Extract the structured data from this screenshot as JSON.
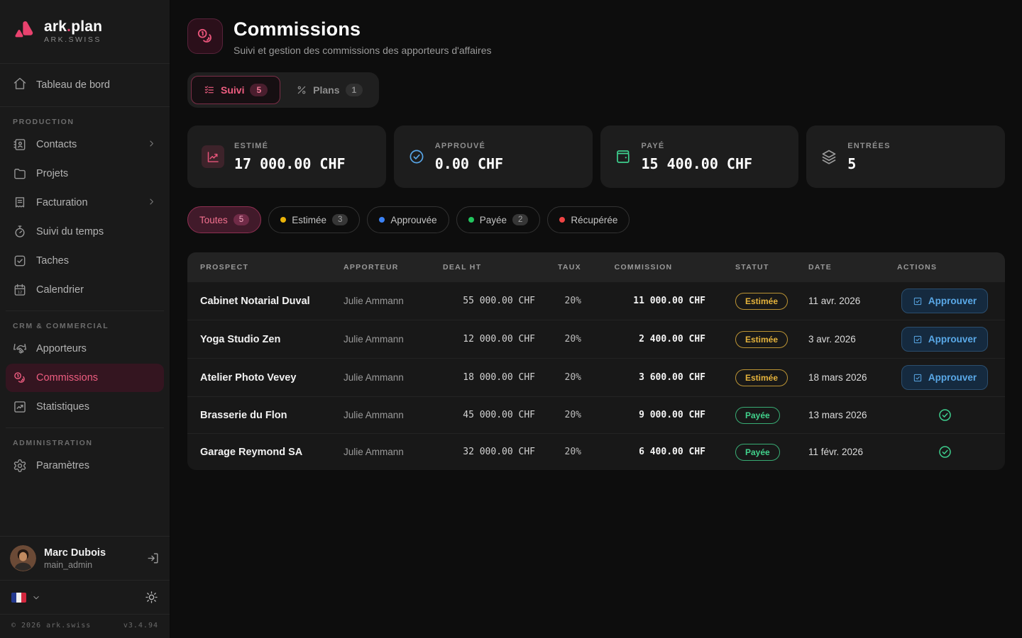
{
  "brand": {
    "name_a": "ark",
    "name_dot": ".",
    "name_b": "plan",
    "org": "ARK.SWISS"
  },
  "colors": {
    "accent_pink": "#e8426e",
    "yellow": "#eab308",
    "green": "#22c55e",
    "blue": "#3b82f6",
    "red": "#ef4444",
    "approve_blue": "#5aa9e8"
  },
  "sidebar": {
    "dashboard": {
      "label": "Tableau de bord",
      "icon": "home-icon"
    },
    "sections": [
      {
        "title": "PRODUCTION",
        "items": [
          {
            "label": "Contacts",
            "icon": "contacts-icon",
            "chevron": true
          },
          {
            "label": "Projets",
            "icon": "folder-icon"
          },
          {
            "label": "Facturation",
            "icon": "invoice-icon",
            "chevron": true
          },
          {
            "label": "Suivi du temps",
            "icon": "timer-icon"
          },
          {
            "label": "Taches",
            "icon": "check-square-icon"
          },
          {
            "label": "Calendrier",
            "icon": "calendar-icon"
          }
        ]
      },
      {
        "title": "CRM & COMMERCIAL",
        "items": [
          {
            "label": "Apporteurs",
            "icon": "handshake-icon"
          },
          {
            "label": "Commissions",
            "icon": "coins-icon",
            "active": true
          },
          {
            "label": "Statistiques",
            "icon": "stats-icon"
          }
        ]
      },
      {
        "title": "ADMINISTRATION",
        "items": [
          {
            "label": "Paramètres",
            "icon": "gear-icon"
          }
        ]
      }
    ],
    "user": {
      "name": "Marc Dubois",
      "role": "main_admin"
    },
    "footer": {
      "copyright": "© 2026 ark.swiss",
      "version": "v3.4.94"
    }
  },
  "header": {
    "title": "Commissions",
    "subtitle": "Suivi et gestion des commissions des apporteurs d'affaires",
    "icon": "coins-icon"
  },
  "tabs": [
    {
      "label": "Suivi",
      "count": "5",
      "icon": "list-checks-icon",
      "active": true
    },
    {
      "label": "Plans",
      "count": "1",
      "icon": "percent-icon",
      "active": false
    }
  ],
  "stats": [
    {
      "label": "ESTIMÉ",
      "value": "17 000.00 CHF",
      "icon": "trend-icon",
      "color": "#e8547a",
      "boxed": true
    },
    {
      "label": "APPROUVÉ",
      "value": "0.00 CHF",
      "icon": "check-circle-icon",
      "color": "#58a6e8",
      "boxed": false
    },
    {
      "label": "PAYÉ",
      "value": "15 400.00 CHF",
      "icon": "wallet-icon",
      "color": "#3ecf8e",
      "boxed": false
    },
    {
      "label": "ENTRÉES",
      "value": "5",
      "icon": "layers-icon",
      "color": "#9a9a9a",
      "boxed": false
    }
  ],
  "filters": [
    {
      "label": "Toutes",
      "count": "5",
      "dot": "",
      "active": true
    },
    {
      "label": "Estimée",
      "count": "3",
      "dot": "#eab308",
      "active": false
    },
    {
      "label": "Approuvée",
      "count": "",
      "dot": "#3b82f6",
      "active": false
    },
    {
      "label": "Payée",
      "count": "2",
      "dot": "#22c55e",
      "active": false
    },
    {
      "label": "Récupérée",
      "count": "",
      "dot": "#ef4444",
      "active": false
    }
  ],
  "table": {
    "headers": [
      "PROSPECT",
      "APPORTEUR",
      "DEAL HT",
      "TAUX",
      "COMMISSION",
      "STATUT",
      "DATE",
      "ACTIONS"
    ],
    "approve_label": "Approuver",
    "rows": [
      {
        "prospect": "Cabinet Notarial Duval",
        "apporteur": "Julie Ammann",
        "deal": "55 000.00 CHF",
        "taux": "20%",
        "commission": "11 000.00 CHF",
        "statut": "Estimée",
        "statut_type": "estimee",
        "date": "11 avr. 2026",
        "action": "approve"
      },
      {
        "prospect": "Yoga Studio Zen",
        "apporteur": "Julie Ammann",
        "deal": "12 000.00 CHF",
        "taux": "20%",
        "commission": "2 400.00 CHF",
        "statut": "Estimée",
        "statut_type": "estimee",
        "date": "3 avr. 2026",
        "action": "approve"
      },
      {
        "prospect": "Atelier Photo Vevey",
        "apporteur": "Julie Ammann",
        "deal": "18 000.00 CHF",
        "taux": "20%",
        "commission": "3 600.00 CHF",
        "statut": "Estimée",
        "statut_type": "estimee",
        "date": "18 mars 2026",
        "action": "approve"
      },
      {
        "prospect": "Brasserie du Flon",
        "apporteur": "Julie Ammann",
        "deal": "45 000.00 CHF",
        "taux": "20%",
        "commission": "9 000.00 CHF",
        "statut": "Payée",
        "statut_type": "payee",
        "date": "13 mars 2026",
        "action": "paid"
      },
      {
        "prospect": "Garage Reymond SA",
        "apporteur": "Julie Ammann",
        "deal": "32 000.00 CHF",
        "taux": "20%",
        "commission": "6 400.00 CHF",
        "statut": "Payée",
        "statut_type": "payee",
        "date": "11 févr. 2026",
        "action": "paid"
      }
    ]
  }
}
